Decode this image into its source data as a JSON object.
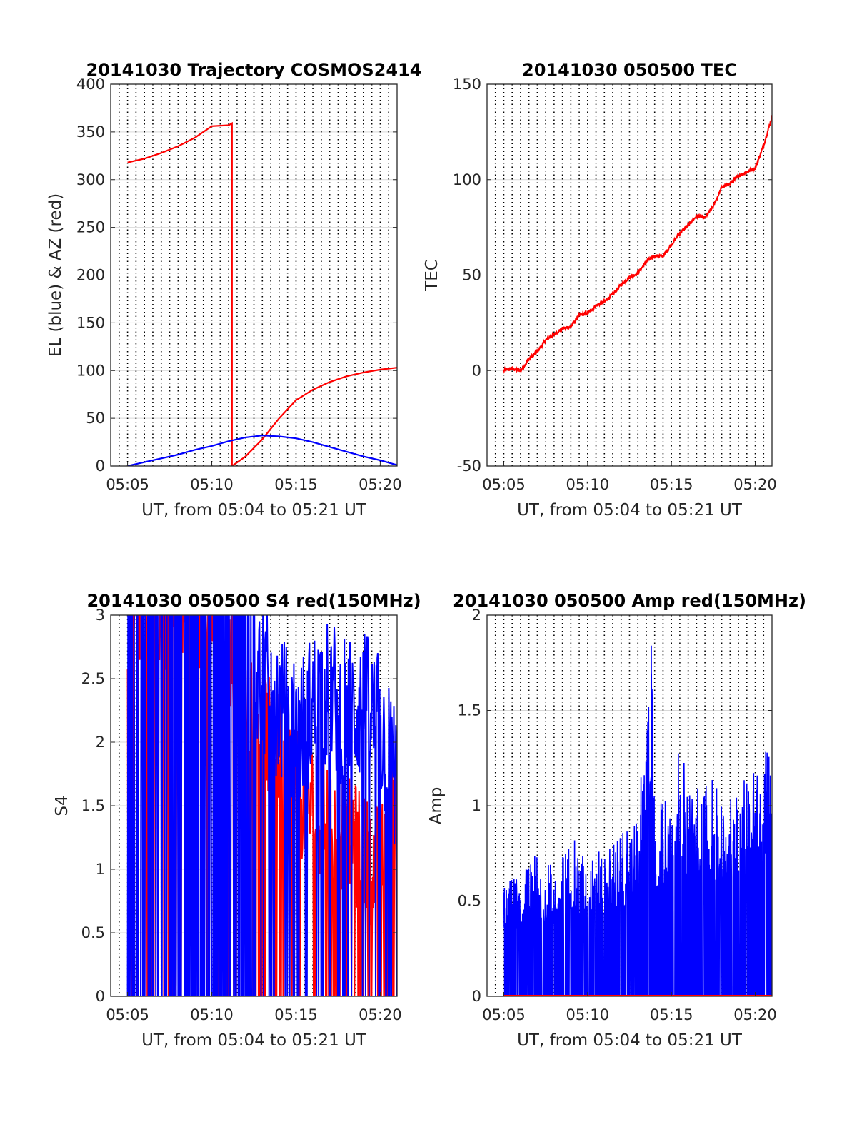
{
  "colors": {
    "azimuth": "#ff0000",
    "elevation": "#0000ff",
    "tec": "#ff0000",
    "s4_red": "#ff0000",
    "s4_blue": "#0000ff",
    "amp": "#0000ff",
    "axis": "#262626",
    "grid": "#d9d9d9"
  },
  "chart_data": [
    {
      "type": "line",
      "title": "20141030 Trajectory COSMOS2414",
      "xlabel": "UT, from 05:04 to 05:21 UT",
      "ylabel": "EL (blue) & AZ (red)",
      "x_unit": "minutes after 05:00",
      "xlim": [
        4.0,
        21.0
      ],
      "ylim": [
        0,
        400
      ],
      "xticks": [
        5,
        10,
        15,
        20
      ],
      "xtick_labels": [
        "05:05",
        "05:10",
        "05:15",
        "05:20"
      ],
      "yticks": [
        0,
        50,
        100,
        150,
        200,
        250,
        300,
        350,
        400
      ],
      "ytick_labels": [
        "0",
        "50",
        "100",
        "150",
        "200",
        "250",
        "300",
        "350",
        "400"
      ],
      "grid": "dotted vertical every 0.5 min, light horizontal",
      "series": [
        {
          "color": "#ff0000",
          "break_at": 11.2,
          "x": [
            5.0,
            6.0,
            7.0,
            8.0,
            9.0,
            10.0,
            11.0,
            11.2,
            11.2,
            12.0,
            13.0,
            14.0,
            15.0,
            16.0,
            17.0,
            18.0,
            19.0,
            20.0,
            21.0
          ],
          "y": [
            318,
            322,
            328,
            335,
            344,
            356,
            357,
            359,
            0,
            10,
            28,
            50,
            69,
            80,
            88,
            94,
            98,
            101,
            103
          ]
        },
        {
          "color": "#0000ff",
          "x": [
            5.0,
            6.0,
            7.0,
            8.0,
            9.0,
            10.0,
            11.0,
            12.0,
            13.0,
            14.0,
            15.0,
            16.0,
            17.0,
            18.0,
            19.0,
            20.0,
            21.0
          ],
          "y": [
            0,
            4,
            8,
            12,
            17,
            21,
            26,
            30,
            32,
            31,
            29,
            25,
            20,
            15,
            10,
            6,
            1
          ]
        }
      ]
    },
    {
      "type": "line",
      "title": "20141030 050500 TEC",
      "xlabel": "UT, from 05:04 to 05:21 UT",
      "ylabel": "TEC",
      "x_unit": "minutes after 05:00",
      "xlim": [
        4.0,
        21.0
      ],
      "ylim": [
        -50,
        150
      ],
      "xticks": [
        5,
        10,
        15,
        20
      ],
      "xtick_labels": [
        "05:05",
        "05:10",
        "05:15",
        "05:20"
      ],
      "yticks": [
        -50,
        0,
        50,
        100,
        150
      ],
      "ytick_labels": [
        "-50",
        "0",
        "50",
        "100",
        "150"
      ],
      "grid": "dotted vertical every 0.5 min, light horizontal",
      "series": [
        {
          "color": "#ff0000",
          "x": [
            5.0,
            5.5,
            6.0,
            6.5,
            7.0,
            7.5,
            8.0,
            8.5,
            9.0,
            9.5,
            10.0,
            10.5,
            11.0,
            11.5,
            12.0,
            12.5,
            13.0,
            13.5,
            14.0,
            14.5,
            15.0,
            15.5,
            16.0,
            16.5,
            17.0,
            17.5,
            18.0,
            18.5,
            19.0,
            19.5,
            20.0,
            20.5,
            21.0
          ],
          "y": [
            0,
            1,
            0,
            6,
            10,
            16,
            19,
            22,
            23,
            29,
            30,
            34,
            36,
            40,
            45,
            49,
            51,
            57,
            60,
            60,
            66,
            72,
            76,
            81,
            80,
            86,
            96,
            98,
            102,
            104,
            106,
            118,
            133
          ]
        }
      ]
    },
    {
      "type": "line",
      "title": "20141030 050500 S4 red(150MHz)",
      "xlabel": "UT, from 05:04 to 05:21 UT",
      "ylabel": "S4",
      "x_unit": "minutes after 05:00",
      "xlim": [
        4.0,
        21.0
      ],
      "ylim": [
        0,
        3
      ],
      "xticks": [
        5,
        10,
        15,
        20
      ],
      "xtick_labels": [
        "05:05",
        "05:10",
        "05:15",
        "05:20"
      ],
      "yticks": [
        0,
        0.5,
        1,
        1.5,
        2,
        2.5,
        3
      ],
      "ytick_labels": [
        "0",
        "0.5",
        "1",
        "1.5",
        "2",
        "2.5",
        "3"
      ],
      "grid": "dotted vertical every 0.5 min, light horizontal",
      "series": [
        {
          "color": "#ff0000",
          "x": [
            5,
            6,
            7,
            8,
            9,
            10,
            11,
            12,
            13,
            14,
            15,
            16,
            17,
            18,
            19,
            20,
            21
          ],
          "y": [
            3.0,
            3.0,
            3.0,
            3.0,
            3.0,
            3.0,
            2.8,
            2.3,
            2.1,
            1.9,
            1.6,
            1.5,
            1.4,
            1.3,
            1.1,
            1.0,
            1.6
          ]
        },
        {
          "color": "#0000ff",
          "x": [
            5,
            6,
            7,
            8,
            9,
            10,
            11,
            12,
            13,
            14,
            15,
            16,
            17,
            18,
            19,
            20,
            21
          ],
          "y": [
            3.0,
            3.0,
            3.0,
            3.0,
            3.0,
            3.0,
            3.0,
            2.8,
            2.5,
            2.3,
            2.0,
            2.3,
            2.4,
            2.2,
            2.3,
            2.1,
            1.7
          ]
        }
      ]
    },
    {
      "type": "line",
      "title": "20141030 050500 Amp red(150MHz)",
      "xlabel": "UT, from 05:04 to 05:21 UT",
      "ylabel": "Amp",
      "x_unit": "minutes after 05:00",
      "xlim": [
        4.0,
        21.0
      ],
      "ylim": [
        0,
        2
      ],
      "xticks": [
        5,
        10,
        15,
        20
      ],
      "xtick_labels": [
        "05:05",
        "05:10",
        "05:15",
        "05:20"
      ],
      "yticks": [
        0,
        0.5,
        1,
        1.5,
        2
      ],
      "ytick_labels": [
        "0",
        "0.5",
        "1",
        "1.5",
        "2"
      ],
      "grid": "dotted vertical every 0.5 min, light horizontal",
      "series": [
        {
          "color": "#0000ff",
          "x": [
            5,
            6,
            7,
            8,
            9,
            10,
            11,
            12,
            13,
            13.8,
            14,
            15,
            15.5,
            16,
            17,
            18,
            19,
            19.6,
            20,
            21
          ],
          "y": [
            0.62,
            0.65,
            0.75,
            0.68,
            0.85,
            0.72,
            0.78,
            0.85,
            0.95,
            1.84,
            1.0,
            1.15,
            1.43,
            1.05,
            1.2,
            1.05,
            1.1,
            1.42,
            1.2,
            1.37
          ]
        },
        {
          "color": "#ff0000",
          "x": [
            5,
            21
          ],
          "y": [
            0.0,
            0.0
          ]
        }
      ]
    }
  ]
}
